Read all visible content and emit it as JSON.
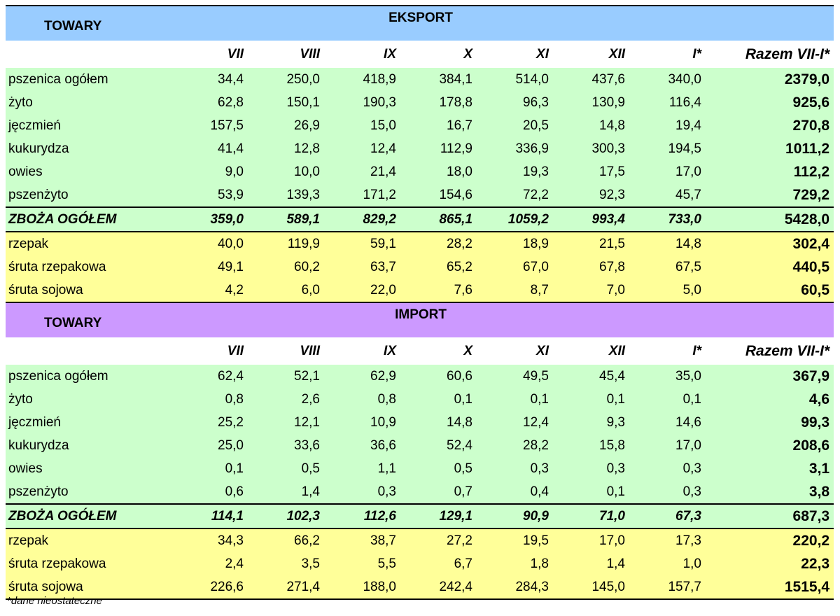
{
  "export": {
    "towary_label": "TOWARY",
    "title": "EKSPORT",
    "columns": [
      "VII",
      "VIII",
      "IX",
      "X",
      "XI",
      "XII",
      "I*",
      "Razem VII-I*"
    ],
    "rows": [
      {
        "name": "pszenica ogółem",
        "values": [
          "34,4",
          "250,0",
          "418,9",
          "384,1",
          "514,0",
          "437,6",
          "340,0"
        ],
        "total": "2379,0"
      },
      {
        "name": "żyto",
        "values": [
          "62,8",
          "150,1",
          "190,3",
          "178,8",
          "96,3",
          "130,9",
          "116,4"
        ],
        "total": "925,6"
      },
      {
        "name": "jęczmień",
        "values": [
          "157,5",
          "26,9",
          "15,0",
          "16,7",
          "20,5",
          "14,8",
          "19,4"
        ],
        "total": "270,8"
      },
      {
        "name": "kukurydza",
        "values": [
          "41,4",
          "12,8",
          "12,4",
          "112,9",
          "336,9",
          "300,3",
          "194,5"
        ],
        "total": "1011,2"
      },
      {
        "name": "owies",
        "values": [
          "9,0",
          "10,0",
          "21,4",
          "18,0",
          "19,3",
          "17,5",
          "17,0"
        ],
        "total": "112,2"
      },
      {
        "name": "pszenżyto",
        "values": [
          "53,9",
          "139,3",
          "171,2",
          "154,6",
          "72,2",
          "92,3",
          "45,7"
        ],
        "total": "729,2"
      }
    ],
    "sum": {
      "name": "ZBOŻA OGÓŁEM",
      "values": [
        "359,0",
        "589,1",
        "829,2",
        "865,1",
        "1059,2",
        "993,4",
        "733,0"
      ],
      "total": "5428,0"
    },
    "oil_rows": [
      {
        "name": "rzepak",
        "values": [
          "40,0",
          "119,9",
          "59,1",
          "28,2",
          "18,9",
          "21,5",
          "14,8"
        ],
        "total": "302,4"
      },
      {
        "name": "śruta rzepakowa",
        "values": [
          "49,1",
          "60,2",
          "63,7",
          "65,2",
          "67,0",
          "67,8",
          "67,5"
        ],
        "total": "440,5"
      },
      {
        "name": "śruta sojowa",
        "values": [
          "4,2",
          "6,0",
          "22,0",
          "7,6",
          "8,7",
          "7,0",
          "5,0"
        ],
        "total": "60,5"
      }
    ]
  },
  "import": {
    "towary_label": "TOWARY",
    "title": "IMPORT",
    "columns": [
      "VII",
      "VIII",
      "IX",
      "X",
      "XI",
      "XII",
      "I*",
      "Razem VII-I*"
    ],
    "rows": [
      {
        "name": "pszenica ogółem",
        "values": [
          "62,4",
          "52,1",
          "62,9",
          "60,6",
          "49,5",
          "45,4",
          "35,0"
        ],
        "total": "367,9"
      },
      {
        "name": "żyto",
        "values": [
          "0,8",
          "2,6",
          "0,8",
          "0,1",
          "0,1",
          "0,1",
          "0,1"
        ],
        "total": "4,6"
      },
      {
        "name": "jęczmień",
        "values": [
          "25,2",
          "12,1",
          "10,9",
          "14,8",
          "12,4",
          "9,3",
          "14,6"
        ],
        "total": "99,3"
      },
      {
        "name": "kukurydza",
        "values": [
          "25,0",
          "33,6",
          "36,6",
          "52,4",
          "28,2",
          "15,8",
          "17,0"
        ],
        "total": "208,6"
      },
      {
        "name": "owies",
        "values": [
          "0,1",
          "0,5",
          "1,1",
          "0,5",
          "0,3",
          "0,3",
          "0,3"
        ],
        "total": "3,1"
      },
      {
        "name": "pszenżyto",
        "values": [
          "0,6",
          "1,4",
          "0,3",
          "0,7",
          "0,4",
          "0,1",
          "0,3"
        ],
        "total": "3,8"
      }
    ],
    "sum": {
      "name": "ZBOŻA OGÓŁEM",
      "values": [
        "114,1",
        "102,3",
        "112,6",
        "129,1",
        "90,9",
        "71,0",
        "67,3"
      ],
      "total": "687,3"
    },
    "oil_rows": [
      {
        "name": "rzepak",
        "values": [
          "34,3",
          "66,2",
          "38,7",
          "27,2",
          "19,5",
          "17,0",
          "17,3"
        ],
        "total": "220,2"
      },
      {
        "name": "śruta rzepakowa",
        "values": [
          "2,4",
          "3,5",
          "5,5",
          "6,7",
          "1,8",
          "1,4",
          "1,0"
        ],
        "total": "22,3"
      },
      {
        "name": "śruta sojowa",
        "values": [
          "226,6",
          "271,4",
          "188,0",
          "242,4",
          "284,3",
          "145,0",
          "157,7"
        ],
        "total": "1515,4"
      }
    ]
  },
  "colors": {
    "export_header": "#99ccff",
    "import_header": "#cc99ff",
    "grain_rows": "#ccffcc",
    "oil_rows": "#ffff99"
  },
  "footnote": "*dane nieostateczne"
}
